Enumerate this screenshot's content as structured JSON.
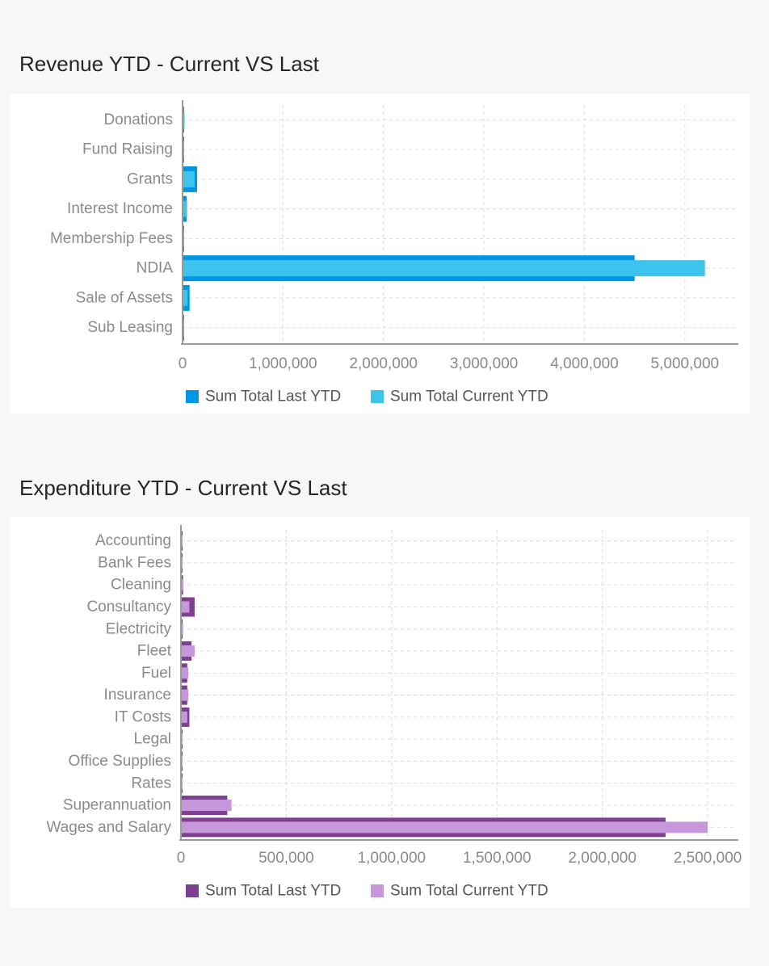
{
  "revenue": {
    "title": "Revenue YTD - Current VS Last",
    "chart_data": {
      "type": "bar",
      "orientation": "horizontal",
      "categories": [
        "Donations",
        "Fund Raising",
        "Grants",
        "Interest Income",
        "Membership Fees",
        "NDIA",
        "Sale of Assets",
        "Sub Leasing"
      ],
      "series": [
        {
          "name": "Sum Total Last YTD",
          "color": "#0096e6",
          "values": [
            15000,
            5000,
            145000,
            40000,
            5000,
            4500000,
            70000,
            5000
          ]
        },
        {
          "name": "Sum Total Current YTD",
          "color": "#3cc4ec",
          "values": [
            20000,
            5000,
            120000,
            45000,
            5000,
            5200000,
            50000,
            5000
          ]
        }
      ],
      "xlim": [
        0,
        5500000
      ],
      "ticks": [
        0,
        1000000,
        2000000,
        3000000,
        4000000,
        5000000
      ],
      "tick_labels": [
        "0",
        "1,000,000",
        "2,000,000",
        "3,000,000",
        "4,000,000",
        "5,000,000"
      ],
      "grid": true,
      "legend": "bottom"
    }
  },
  "expenditure": {
    "title": "Expenditure YTD - Current VS Last",
    "chart_data": {
      "type": "bar",
      "orientation": "horizontal",
      "categories": [
        "Accounting",
        "Bank Fees",
        "Cleaning",
        "Consultancy",
        "Electricity",
        "Fleet",
        "Fuel",
        "Insurance",
        "IT Costs",
        "Legal",
        "Office Supplies",
        "Rates",
        "Superannuation",
        "Wages and Salary"
      ],
      "series": [
        {
          "name": "Sum Total Last YTD",
          "color": "#7e3f91",
          "values": [
            5000,
            3000,
            10000,
            65000,
            8000,
            50000,
            30000,
            30000,
            40000,
            5000,
            5000,
            3000,
            220000,
            2300000
          ]
        },
        {
          "name": "Sum Total Current YTD",
          "color": "#c797dc",
          "values": [
            8000,
            3000,
            12000,
            40000,
            10000,
            65000,
            35000,
            35000,
            30000,
            8000,
            5000,
            3000,
            240000,
            2500000
          ]
        }
      ],
      "xlim": [
        0,
        2630000
      ],
      "ticks": [
        0,
        500000,
        1000000,
        1500000,
        2000000,
        2500000
      ],
      "tick_labels": [
        "0",
        "500,000",
        "1,000,000",
        "1,500,000",
        "2,000,000",
        "2,500,000"
      ],
      "grid": true,
      "legend": "bottom"
    }
  }
}
